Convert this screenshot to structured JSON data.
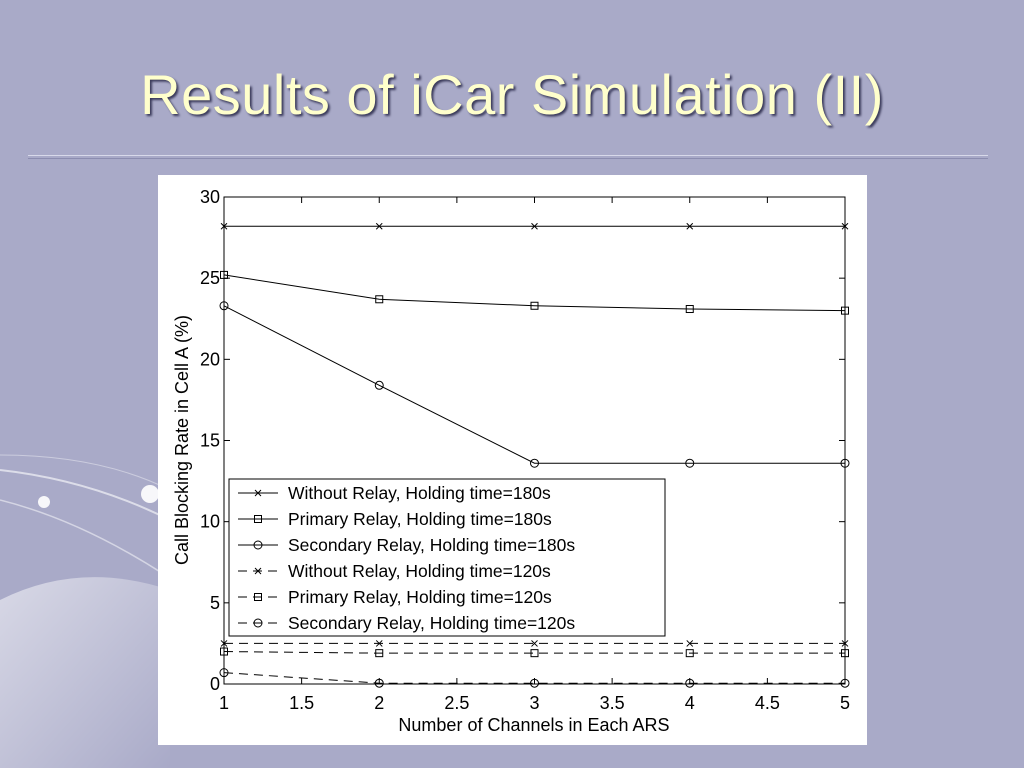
{
  "slide": {
    "title": "Results of iCar Simulation (II)",
    "background_color": "#a9aac8",
    "title_color": "#ffffcc"
  },
  "chart_data": {
    "type": "line",
    "xlabel": "Number of Channels in Each ARS",
    "ylabel": "Call Blocking Rate in Cell A (%)",
    "xlim": [
      1,
      5
    ],
    "ylim": [
      0,
      30
    ],
    "x_ticks": [
      "1",
      "1.5",
      "2",
      "2.5",
      "3",
      "3.5",
      "4",
      "4.5",
      "5"
    ],
    "y_ticks": [
      "0",
      "5",
      "10",
      "15",
      "20",
      "25",
      "30"
    ],
    "grid": false,
    "legend_position": "bottom-left",
    "x": [
      1,
      2,
      3,
      4,
      5
    ],
    "series": [
      {
        "name": "Without Relay, Holding time=180s",
        "marker": "x",
        "line_style": "solid",
        "values": [
          28.2,
          28.2,
          28.2,
          28.2,
          28.2
        ]
      },
      {
        "name": "Primary Relay, Holding time=180s",
        "marker": "square",
        "line_style": "solid",
        "values": [
          25.2,
          23.7,
          23.3,
          23.1,
          23.0
        ]
      },
      {
        "name": "Secondary Relay, Holding time=180s",
        "marker": "circle",
        "line_style": "solid",
        "values": [
          23.3,
          18.4,
          13.6,
          13.6,
          13.6
        ]
      },
      {
        "name": "Without Relay, Holding time=120s",
        "marker": "x",
        "line_style": "dashed",
        "values": [
          2.5,
          2.5,
          2.5,
          2.5,
          2.5
        ]
      },
      {
        "name": "Primary Relay, Holding time=120s",
        "marker": "square",
        "line_style": "dashed",
        "values": [
          2.0,
          1.9,
          1.9,
          1.9,
          1.9
        ]
      },
      {
        "name": "Secondary Relay, Holding time=120s",
        "marker": "circle",
        "line_style": "dashed",
        "values": [
          0.7,
          0.05,
          0.05,
          0.05,
          0.05
        ]
      }
    ]
  }
}
